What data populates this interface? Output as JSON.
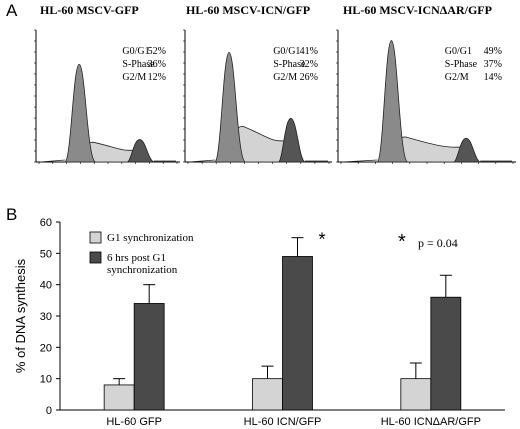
{
  "panel_a": {
    "label": "A",
    "histograms": [
      {
        "title": "HL-60 MSCV-GFP",
        "stats": [
          [
            "G0/G1",
            "52%"
          ],
          [
            "S-Phase",
            "36%"
          ],
          [
            "G2/M",
            "12%"
          ]
        ],
        "g1_height": 0.74,
        "g2_height": 0.17,
        "s_height": 0.15
      },
      {
        "title": "HL-60 MSCV-ICN/GFP",
        "stats": [
          [
            "G0/G1",
            "41%"
          ],
          [
            "S-Phase",
            "32%"
          ],
          [
            "G2/M",
            "26%"
          ]
        ],
        "g1_height": 0.83,
        "g2_height": 0.33,
        "s_height": 0.27
      },
      {
        "title": "HL-60 MSCV-ICNΔAR/GFP",
        "stats": [
          [
            "G0/G1",
            "49%"
          ],
          [
            "S-Phase",
            "37%"
          ],
          [
            "G2/M",
            "14%"
          ]
        ],
        "g1_height": 0.92,
        "g2_height": 0.18,
        "s_height": 0.19
      }
    ]
  },
  "panel_b": {
    "label": "B",
    "significance_note": "p = 0.04",
    "significance_marker": "*"
  },
  "chart_data": {
    "type": "bar",
    "title": "",
    "xlabel": "",
    "ylabel": "% of DNA synthesis",
    "ylim": [
      0,
      60
    ],
    "yticks": [
      0,
      10,
      20,
      30,
      40,
      50,
      60
    ],
    "categories": [
      "HL-60 GFP",
      "HL-60 ICN/GFP",
      "HL-60 ICNΔAR/GFP"
    ],
    "series": [
      {
        "name": "G1 synchronization",
        "color": "#d4d4d4",
        "values": [
          8,
          10,
          10
        ],
        "errors": [
          2,
          4,
          5
        ]
      },
      {
        "name": "6 hrs post G1 synchronization",
        "color": "#4a4a4a",
        "values": [
          34,
          49,
          36
        ],
        "errors": [
          6,
          6,
          7
        ]
      }
    ],
    "annotations": [
      {
        "category_index": 1,
        "series_index": 1,
        "text": "*"
      }
    ],
    "legend": "top-left",
    "grid": false
  }
}
